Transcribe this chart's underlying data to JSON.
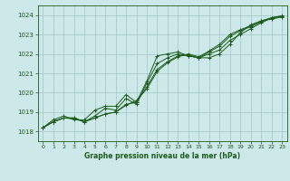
{
  "title": "Graphe pression niveau de la mer (hPa)",
  "bg_color": "#cce8e8",
  "grid_color": "#aacccc",
  "line_color": "#1a5c1a",
  "xlim": [
    -0.5,
    23.5
  ],
  "ylim": [
    1017.5,
    1024.5
  ],
  "yticks": [
    1018,
    1019,
    1020,
    1021,
    1022,
    1023,
    1024
  ],
  "xticks": [
    0,
    1,
    2,
    3,
    4,
    5,
    6,
    7,
    8,
    9,
    10,
    11,
    12,
    13,
    14,
    15,
    16,
    17,
    18,
    19,
    20,
    21,
    22,
    23
  ],
  "series": [
    {
      "x": [
        0,
        1,
        2,
        3,
        4,
        5,
        6,
        7,
        8,
        9,
        10,
        11,
        12,
        13,
        14,
        15,
        16,
        17,
        18,
        19,
        20,
        21,
        22,
        23
      ],
      "y": [
        1018.2,
        1018.6,
        1018.8,
        1018.6,
        1018.6,
        1019.1,
        1019.3,
        1019.3,
        1019.9,
        1019.5,
        1020.6,
        1021.9,
        1022.0,
        1022.1,
        1021.9,
        1021.8,
        1021.8,
        1022.0,
        1022.5,
        1023.1,
        1023.5,
        1023.7,
        1023.8,
        1023.9
      ]
    },
    {
      "x": [
        0,
        1,
        2,
        3,
        4,
        5,
        6,
        7,
        8,
        9,
        10,
        11,
        12,
        13,
        14,
        15,
        16,
        17,
        18,
        19,
        20,
        21,
        22,
        23
      ],
      "y": [
        1018.2,
        1018.5,
        1018.7,
        1018.7,
        1018.5,
        1018.8,
        1019.2,
        1019.1,
        1019.7,
        1019.4,
        1020.5,
        1021.5,
        1021.8,
        1022.0,
        1021.9,
        1021.8,
        1022.0,
        1022.2,
        1022.7,
        1023.0,
        1023.3,
        1023.6,
        1023.85,
        1023.95
      ]
    },
    {
      "x": [
        0,
        1,
        2,
        3,
        4,
        5,
        6,
        7,
        8,
        9,
        10,
        11,
        12,
        13,
        14,
        15,
        16,
        17,
        18,
        19,
        20,
        21,
        22,
        23
      ],
      "y": [
        1018.2,
        1018.5,
        1018.7,
        1018.7,
        1018.5,
        1018.7,
        1018.9,
        1019.0,
        1019.4,
        1019.5,
        1020.3,
        1021.2,
        1021.6,
        1021.9,
        1021.95,
        1021.8,
        1022.1,
        1022.4,
        1022.9,
        1023.2,
        1023.4,
        1023.65,
        1023.85,
        1023.95
      ]
    },
    {
      "x": [
        0,
        1,
        2,
        3,
        4,
        5,
        6,
        7,
        8,
        9,
        10,
        11,
        12,
        13,
        14,
        15,
        16,
        17,
        18,
        19,
        20,
        21,
        22,
        23
      ],
      "y": [
        1018.2,
        1018.5,
        1018.7,
        1018.65,
        1018.5,
        1018.7,
        1018.9,
        1019.0,
        1019.35,
        1019.6,
        1020.2,
        1021.1,
        1021.55,
        1021.85,
        1022.0,
        1021.85,
        1022.15,
        1022.5,
        1023.0,
        1023.25,
        1023.45,
        1023.7,
        1023.87,
        1023.97
      ]
    }
  ]
}
